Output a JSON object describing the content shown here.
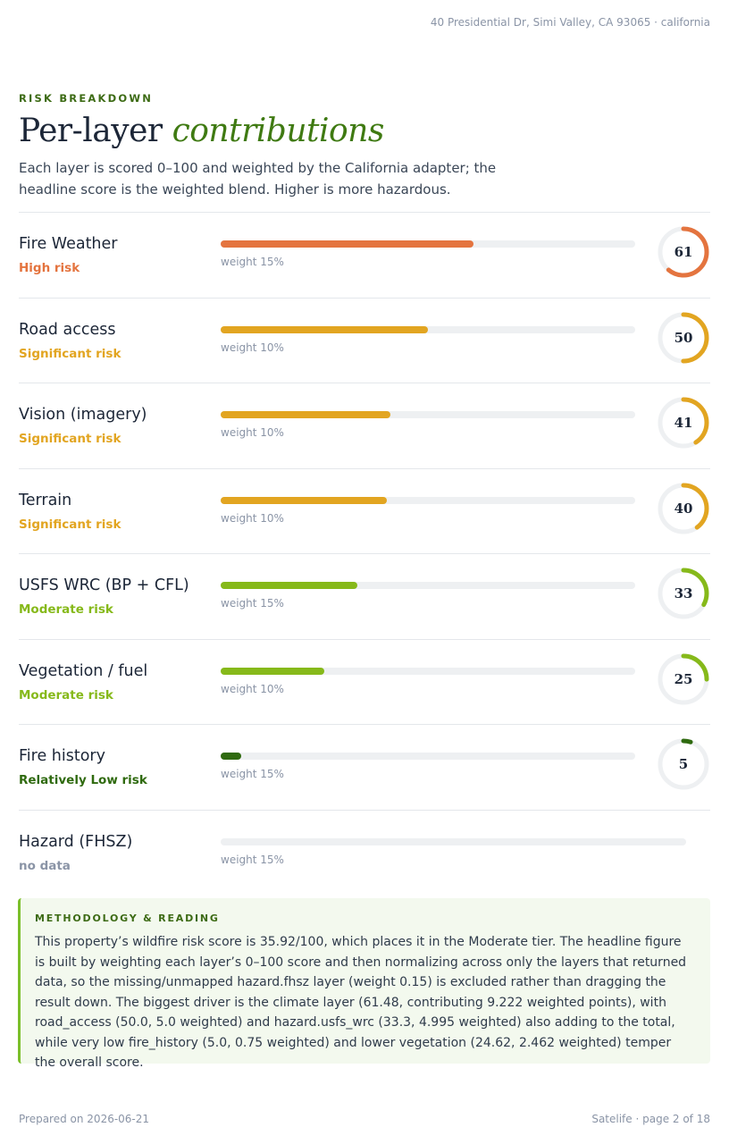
{
  "header": {
    "address": "40 Presidential Dr, Simi Valley, CA 93065 · california"
  },
  "section": {
    "eyebrow": "RISK BREAKDOWN",
    "title_plain": "Per-layer",
    "title_accent": "contributions",
    "intro": "Each layer is scored 0–100 and weighted by the California adapter; the headline score is the weighted blend. Higher is more hazardous."
  },
  "layers": [
    {
      "name": "Fire Weather",
      "tier": "High risk",
      "weight": "weight 15%",
      "score": 61,
      "display": "61",
      "color": "#e4743f"
    },
    {
      "name": "Road access",
      "tier": "Significant risk",
      "weight": "weight 10%",
      "score": 50,
      "display": "50",
      "color": "#e2a521"
    },
    {
      "name": "Vision (imagery)",
      "tier": "Significant risk",
      "weight": "weight 10%",
      "score": 41,
      "display": "41",
      "color": "#e2a521"
    },
    {
      "name": "Terrain",
      "tier": "Significant risk",
      "weight": "weight 10%",
      "score": 40,
      "display": "40",
      "color": "#e2a521"
    },
    {
      "name": "USFS WRC (BP + CFL)",
      "tier": "Moderate risk",
      "weight": "weight 15%",
      "score": 33,
      "display": "33",
      "color": "#86b91a"
    },
    {
      "name": "Vegetation / fuel",
      "tier": "Moderate risk",
      "weight": "weight 10%",
      "score": 25,
      "display": "25",
      "color": "#86b91a"
    },
    {
      "name": "Fire history",
      "tier": "Relatively Low risk",
      "weight": "weight 15%",
      "score": 5,
      "display": "5",
      "color": "#2f6a0f"
    },
    {
      "name": "Hazard (FHSZ)",
      "tier": "no data",
      "weight": "weight 15%",
      "score": null,
      "display": "",
      "color": "#8a94a6"
    }
  ],
  "methodology": {
    "title": "METHODOLOGY & READING",
    "body": "This property’s wildfire risk score is 35.92/100, which places it in the Moderate tier. The headline figure is built by weighting each layer’s 0–100 score and then normalizing across only the layers that returned data, so the missing/unmapped hazard.fhsz layer (weight 0.15) is excluded rather than dragging the result down. The biggest driver is the climate layer (61.48, contributing 9.222 weighted points), with road_access (50.0, 5.0 weighted) and hazard.usfs_wrc (33.3, 4.995 weighted) also adding to the total, while very low fire_history (5.0, 0.75 weighted) and lower vegetation (24.62, 2.462 weighted) temper the overall score."
  },
  "footer": {
    "prepared": "Prepared on 2026-06-21",
    "page": "Satelife · page 2 of 18"
  },
  "colors": {
    "accent_green": "#3f7a12",
    "gauge_track": "#eef0f2"
  }
}
